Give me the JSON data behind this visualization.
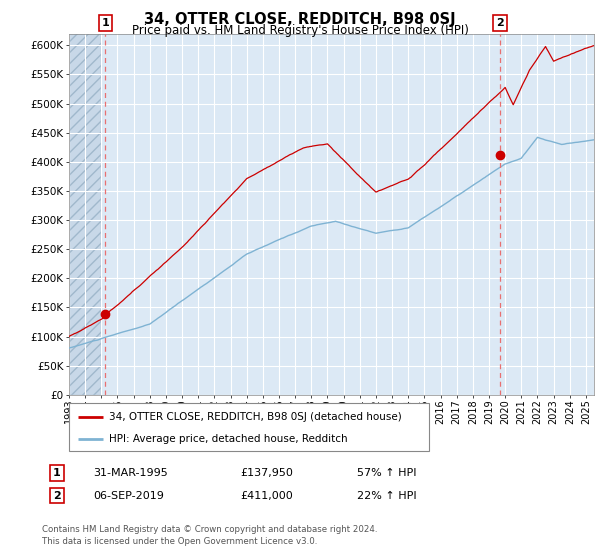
{
  "title": "34, OTTER CLOSE, REDDITCH, B98 0SJ",
  "subtitle": "Price paid vs. HM Land Registry's House Price Index (HPI)",
  "ylabel_ticks": [
    "£0",
    "£50K",
    "£100K",
    "£150K",
    "£200K",
    "£250K",
    "£300K",
    "£350K",
    "£400K",
    "£450K",
    "£500K",
    "£550K",
    "£600K"
  ],
  "ylim": [
    0,
    620000
  ],
  "xlim_start": 1993.0,
  "xlim_end": 2025.5,
  "marker1_x": 1995.25,
  "marker1_y": 137950,
  "marker2_x": 2019.68,
  "marker2_y": 411000,
  "legend_line1": "34, OTTER CLOSE, REDDITCH, B98 0SJ (detached house)",
  "legend_line2": "HPI: Average price, detached house, Redditch",
  "table_row1": [
    "1",
    "31-MAR-1995",
    "£137,950",
    "57% ↑ HPI"
  ],
  "table_row2": [
    "2",
    "06-SEP-2019",
    "£411,000",
    "22% ↑ HPI"
  ],
  "footer": "Contains HM Land Registry data © Crown copyright and database right 2024.\nThis data is licensed under the Open Government Licence v3.0.",
  "line_color_red": "#cc0000",
  "line_color_blue": "#7fb3d3",
  "dashed_line_color": "#e87070",
  "bg_plot_color": "#dce9f5",
  "bg_hatch_color": "#c8d8e8",
  "background_color": "#ffffff"
}
